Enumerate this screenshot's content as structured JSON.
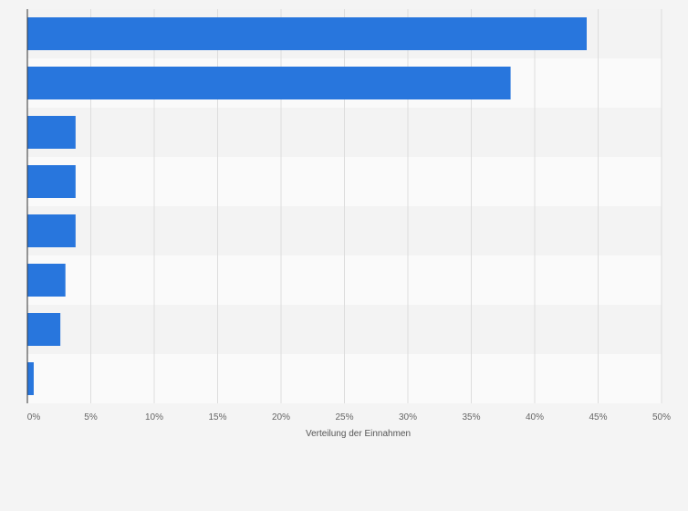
{
  "chart_data": {
    "type": "bar",
    "orientation": "horizontal",
    "categories": [
      "",
      "",
      "",
      "",
      "",
      "",
      "",
      ""
    ],
    "values": [
      44.1,
      38.1,
      3.8,
      3.8,
      3.8,
      3.0,
      2.6,
      0.5
    ],
    "title": "",
    "xlabel": "Verteilung der Einnahmen",
    "ylabel": "",
    "xlim": [
      0,
      50
    ],
    "x_ticks": [
      "0%",
      "5%",
      "10%",
      "15%",
      "20%",
      "25%",
      "30%",
      "35%",
      "40%",
      "45%",
      "50%"
    ],
    "grid": true,
    "legend": "none",
    "colors": {
      "bar": "#2876dd",
      "band_dark": "#f3f3f3",
      "band_light": "#fafafa",
      "grid": "#dddddd",
      "axis": "#333333"
    }
  }
}
